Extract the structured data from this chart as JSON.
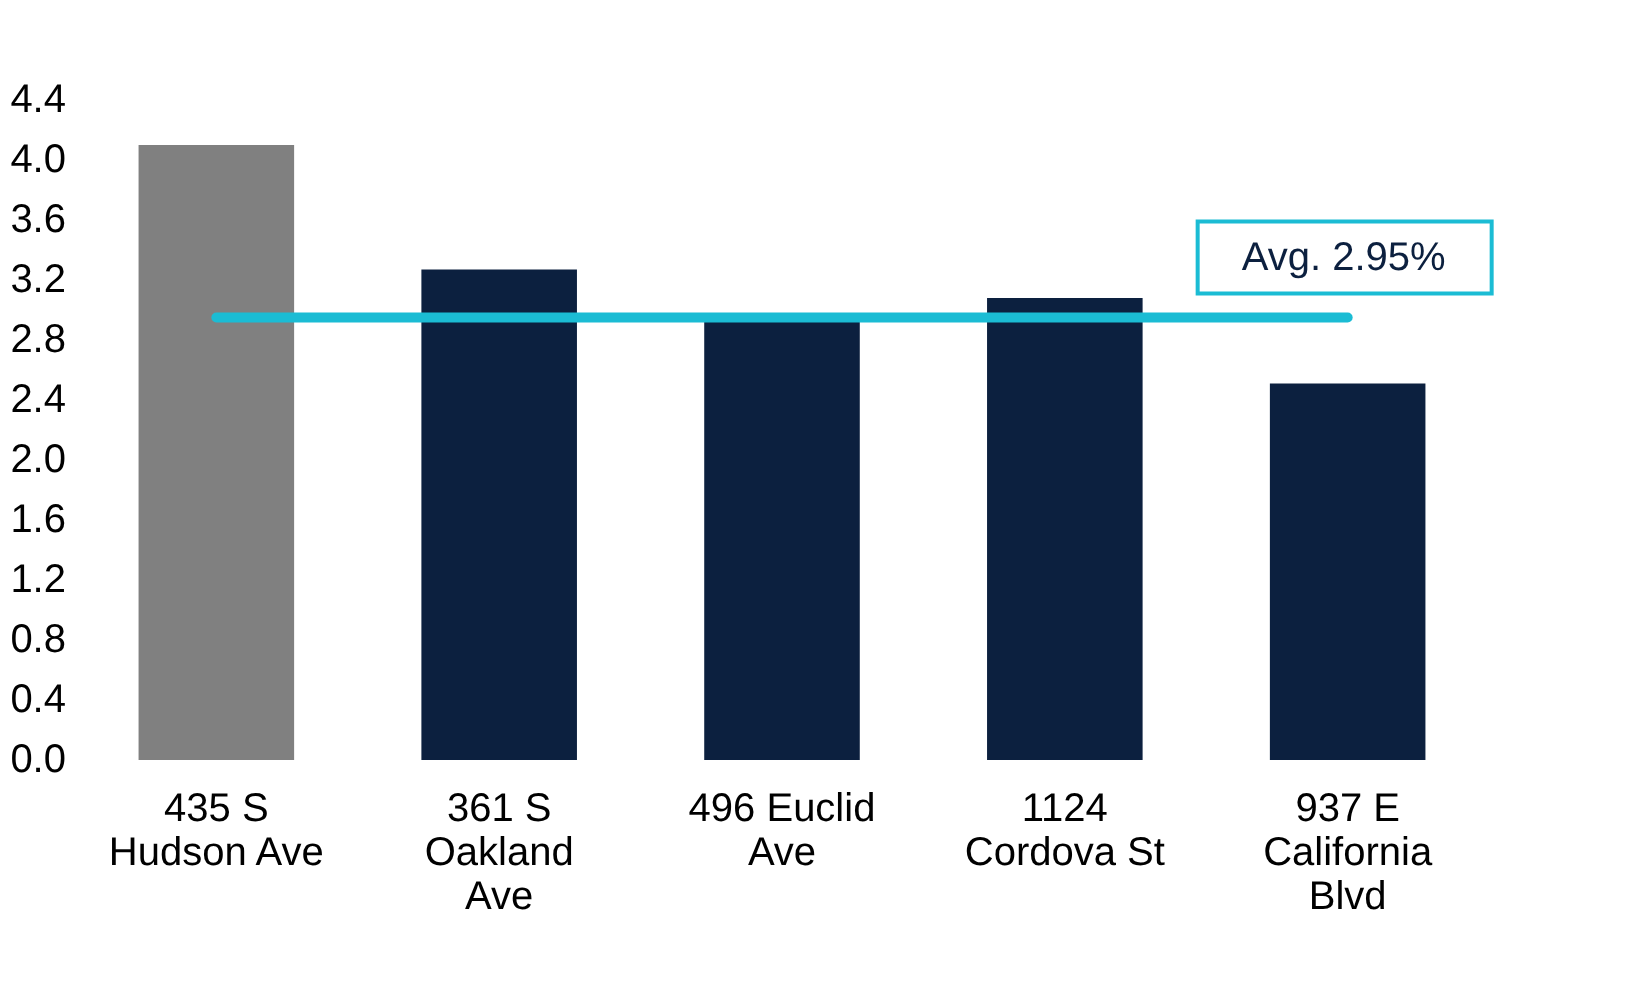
{
  "chart_data": {
    "type": "bar",
    "categories": [
      "435 S Hudson Ave",
      "361 S Oakland Ave",
      "496 Euclid Ave",
      "1124 Cordova St",
      "937 E California Blvd"
    ],
    "values": [
      4.1,
      3.27,
      2.92,
      3.08,
      2.51
    ],
    "colors": [
      "#808080",
      "#0c203f",
      "#0c203f",
      "#0c203f",
      "#0c203f"
    ],
    "ylim": [
      0,
      4.4
    ],
    "yticks": [
      {
        "value": 0,
        "label": "0.0"
      },
      0.4,
      0.8,
      1.2,
      1.6,
      {
        "value": 2,
        "label": "2.0"
      },
      2.4,
      2.8,
      3.2,
      3.6,
      {
        "value": 4,
        "label": "4.0"
      },
      4.4
    ],
    "ref_lines": [
      {
        "axis": "y",
        "value": 2.95,
        "label": "Avg. 2.95%",
        "color": "#1bbcd4"
      }
    ],
    "grid": false
  }
}
